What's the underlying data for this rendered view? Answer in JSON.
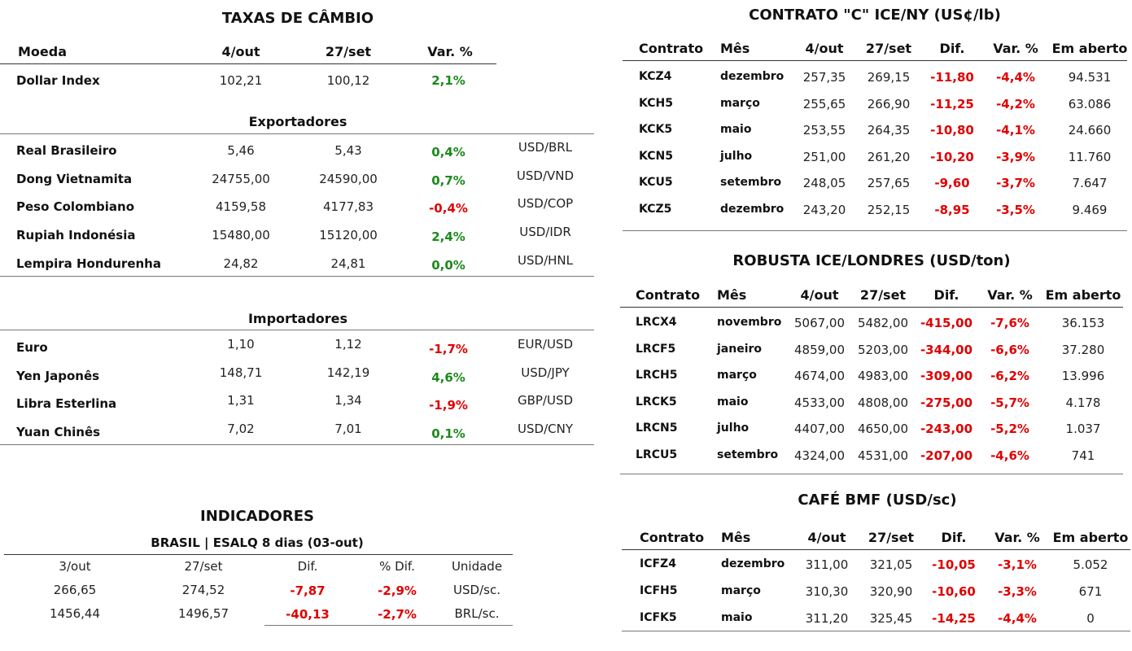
{
  "fx": {
    "title": "TAXAS DE CÂMBIO",
    "headers": [
      "Moeda",
      "4/out",
      "27/set",
      "Var. %"
    ],
    "dollar_index": {
      "name": "Dollar Index",
      "v1": "102,21",
      "v2": "100,12",
      "var": "2,1%"
    },
    "exportadores_title": "Exportadores",
    "exportadores": [
      {
        "name": "Real Brasileiro",
        "v1": "5,46",
        "v2": "5,43",
        "var": "0,4%",
        "unit": "USD/BRL"
      },
      {
        "name": "Dong Vietnamita",
        "v1": "24755,00",
        "v2": "24590,00",
        "var": "0,7%",
        "unit": "USD/VND"
      },
      {
        "name": "Peso Colombiano",
        "v1": "4159,58",
        "v2": "4177,83",
        "var": "-0,4%",
        "unit": "USD/COP"
      },
      {
        "name": "Rupiah Indonésia",
        "v1": "15480,00",
        "v2": "15120,00",
        "var": "2,4%",
        "unit": "USD/IDR"
      },
      {
        "name": "Lempira Hondurenha",
        "v1": "24,82",
        "v2": "24,81",
        "var": "0,0%",
        "unit": "USD/HNL"
      }
    ],
    "importadores_title": "Importadores",
    "importadores": [
      {
        "name": "Euro",
        "v1": "1,10",
        "v2": "1,12",
        "var": "-1,7%",
        "unit": "EUR/USD"
      },
      {
        "name": "Yen Japonês",
        "v1": "148,71",
        "v2": "142,19",
        "var": "4,6%",
        "unit": "USD/JPY"
      },
      {
        "name": "Libra Esterlina",
        "v1": "1,31",
        "v2": "1,34",
        "var": "-1,9%",
        "unit": "GBP/USD"
      },
      {
        "name": "Yuan Chinês",
        "v1": "7,02",
        "v2": "7,01",
        "var": "0,1%",
        "unit": "USD/CNY"
      }
    ]
  },
  "indicadores": {
    "title": "INDICADORES",
    "subtitle": "BRASIL | ESALQ 8 dias (03-out)",
    "headers": [
      "3/out",
      "27/set",
      "Dif.",
      "% Dif.",
      "Unidade"
    ],
    "rows": [
      {
        "v1": "266,65",
        "v2": "274,52",
        "dif": "-7,87",
        "pct": "-2,9%",
        "unit": "USD/sc."
      },
      {
        "v1": "1456,44",
        "v2": "1496,57",
        "dif": "-40,13",
        "pct": "-2,7%",
        "unit": "BRL/sc."
      }
    ]
  },
  "contrato_c": {
    "title": "CONTRATO \"C\" ICE/NY (US¢/lb)",
    "headers": [
      "Contrato",
      "Mês",
      "4/out",
      "27/set",
      "Dif.",
      "Var. %",
      "Em aberto"
    ],
    "rows": [
      {
        "code": "KCZ4",
        "month": "dezembro",
        "v1": "257,35",
        "v2": "269,15",
        "dif": "-11,80",
        "var": "-4,4%",
        "open": "94.531"
      },
      {
        "code": "KCH5",
        "month": "março",
        "v1": "255,65",
        "v2": "266,90",
        "dif": "-11,25",
        "var": "-4,2%",
        "open": "63.086"
      },
      {
        "code": "KCK5",
        "month": "maio",
        "v1": "253,55",
        "v2": "264,35",
        "dif": "-10,80",
        "var": "-4,1%",
        "open": "24.660"
      },
      {
        "code": "KCN5",
        "month": "julho",
        "v1": "251,00",
        "v2": "261,20",
        "dif": "-10,20",
        "var": "-3,9%",
        "open": "11.760"
      },
      {
        "code": "KCU5",
        "month": "setembro",
        "v1": "248,05",
        "v2": "257,65",
        "dif": "-9,60",
        "var": "-3,7%",
        "open": "7.647"
      },
      {
        "code": "KCZ5",
        "month": "dezembro",
        "v1": "243,20",
        "v2": "252,15",
        "dif": "-8,95",
        "var": "-3,5%",
        "open": "9.469"
      }
    ]
  },
  "robusta": {
    "title": "ROBUSTA ICE/LONDRES (USD/ton)",
    "headers": [
      "Contrato",
      "Mês",
      "4/out",
      "27/set",
      "Dif.",
      "Var. %",
      "Em aberto"
    ],
    "rows": [
      {
        "code": "LRCX4",
        "month": "novembro",
        "v1": "5067,00",
        "v2": "5482,00",
        "dif": "-415,00",
        "var": "-7,6%",
        "open": "36.153"
      },
      {
        "code": "LRCF5",
        "month": "janeiro",
        "v1": "4859,00",
        "v2": "5203,00",
        "dif": "-344,00",
        "var": "-6,6%",
        "open": "37.280"
      },
      {
        "code": "LRCH5",
        "month": "março",
        "v1": "4674,00",
        "v2": "4983,00",
        "dif": "-309,00",
        "var": "-6,2%",
        "open": "13.996"
      },
      {
        "code": "LRCK5",
        "month": "maio",
        "v1": "4533,00",
        "v2": "4808,00",
        "dif": "-275,00",
        "var": "-5,7%",
        "open": "4.178"
      },
      {
        "code": "LRCN5",
        "month": "julho",
        "v1": "4407,00",
        "v2": "4650,00",
        "dif": "-243,00",
        "var": "-5,2%",
        "open": "1.037"
      },
      {
        "code": "LRCU5",
        "month": "setembro",
        "v1": "4324,00",
        "v2": "4531,00",
        "dif": "-207,00",
        "var": "-4,6%",
        "open": "741"
      }
    ]
  },
  "bmf": {
    "title": "CAFÉ BMF (USD/sc)",
    "headers": [
      "Contrato",
      "Mês",
      "4/out",
      "27/set",
      "Dif.",
      "Var. %",
      "Em aberto"
    ],
    "rows": [
      {
        "code": "ICFZ4",
        "month": "dezembro",
        "v1": "311,00",
        "v2": "321,05",
        "dif": "-10,05",
        "var": "-3,1%",
        "open": "5.052"
      },
      {
        "code": "ICFH5",
        "month": "março",
        "v1": "310,30",
        "v2": "320,90",
        "dif": "-10,60",
        "var": "-3,3%",
        "open": "671"
      },
      {
        "code": "ICFK5",
        "month": "maio",
        "v1": "311,20",
        "v2": "325,45",
        "dif": "-14,25",
        "var": "-4,4%",
        "open": "0"
      }
    ]
  }
}
